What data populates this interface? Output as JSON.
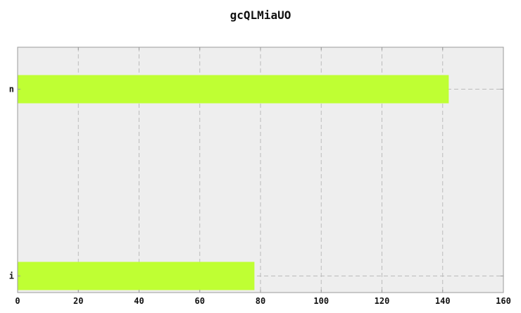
{
  "chart_data": {
    "type": "bar",
    "orientation": "horizontal",
    "title": "gcQLMiaUO",
    "xlabel": "",
    "ylabel": "",
    "categories": [
      "n",
      "i"
    ],
    "values": [
      142,
      78
    ],
    "xlim": [
      0,
      160
    ],
    "xticks": [
      0,
      20,
      40,
      60,
      80,
      100,
      120,
      140,
      160
    ],
    "grid": true,
    "legend": "none",
    "colors": {
      "bar": "#bfff33",
      "plot_background": "#eeeeee",
      "grid": "#bbbbbb",
      "axis": "#999999",
      "text": "#111111"
    }
  }
}
